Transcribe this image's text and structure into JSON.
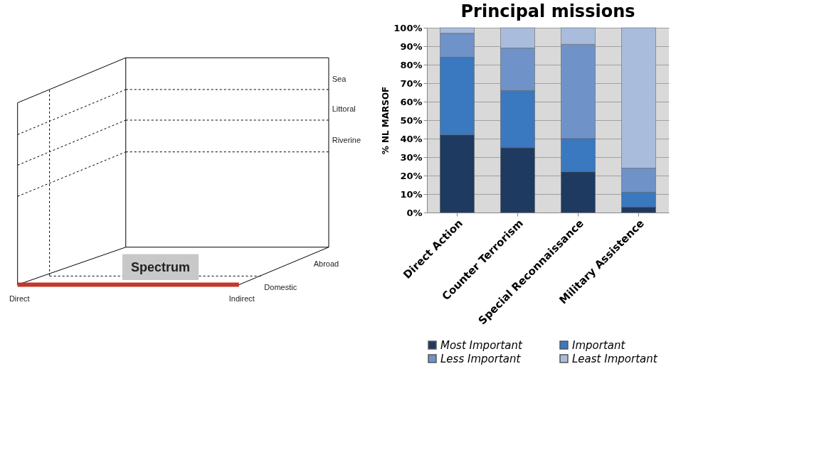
{
  "chart_data": [
    {
      "type": "other",
      "annotations": [
        "Sea",
        "Littoral",
        "Riverine",
        "Abroad",
        "Domestic",
        "Spectrum",
        "Direct",
        "Indirect"
      ]
    },
    {
      "type": "bar",
      "title": "Principal missions",
      "ylabel": "% NL MARSOF",
      "stacked": true,
      "legend": "bottom",
      "grid": "y",
      "categories": [
        "Direct Action",
        "Counter Terrorism",
        "Special Reconnaissance",
        "Military Assistence"
      ],
      "series": [
        {
          "name": "Most Important",
          "color": "#1f3a60",
          "values": [
            42,
            35,
            22,
            3
          ]
        },
        {
          "name": "Important",
          "color": "#3a78c0",
          "values": [
            42,
            31,
            18,
            8
          ]
        },
        {
          "name": "Less Important",
          "color": "#6f93c8",
          "values": [
            13,
            23,
            51,
            13
          ]
        },
        {
          "name": "Least Important",
          "color": "#a9bcdc",
          "values": [
            3,
            11,
            9,
            76
          ]
        }
      ],
      "ylim": [
        0,
        100
      ],
      "yticks": [
        {
          "value": 0,
          "label": "0%"
        },
        {
          "value": 10,
          "label": "10%"
        },
        {
          "value": 20,
          "label": "20%"
        },
        {
          "value": 30,
          "label": "30%"
        },
        {
          "value": 40,
          "label": "40%"
        },
        {
          "value": 50,
          "label": "50%"
        },
        {
          "value": 60,
          "label": "60%"
        },
        {
          "value": 70,
          "label": "70%"
        },
        {
          "value": 80,
          "label": "80%"
        },
        {
          "value": 90,
          "label": "90%"
        },
        {
          "value": 100,
          "label": "100%"
        }
      ]
    }
  ]
}
